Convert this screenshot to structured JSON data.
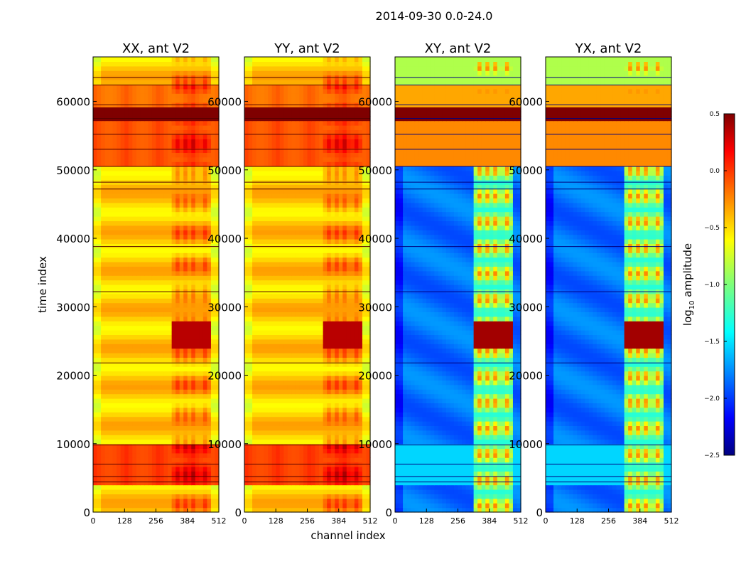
{
  "chart_data": {
    "type": "heatmap",
    "suptitle": "2014-09-30 0.0-24.0",
    "xlabel": "channel index",
    "ylabel": "time index",
    "xlim": [
      0,
      512
    ],
    "ylim": [
      0,
      66500
    ],
    "x_ticks": [
      0,
      128,
      256,
      384,
      512
    ],
    "y_ticks": [
      0,
      10000,
      20000,
      30000,
      40000,
      50000,
      60000
    ],
    "panels": [
      {
        "title": "XX, ant V2",
        "id": "xx"
      },
      {
        "title": "YY, ant V2",
        "id": "yy"
      },
      {
        "title": "XY, ant V2",
        "id": "xy"
      },
      {
        "title": "YX, ant V2",
        "id": "yx"
      }
    ],
    "colorbar": {
      "label_main": "log",
      "label_sub": "10",
      "label_rest": " amplitude",
      "range": [
        -2.5,
        0.5
      ],
      "ticks": [
        "0.5",
        "0.0",
        "−0.5",
        "−1.0",
        "−1.5",
        "−2.0",
        "−2.5"
      ]
    }
  }
}
